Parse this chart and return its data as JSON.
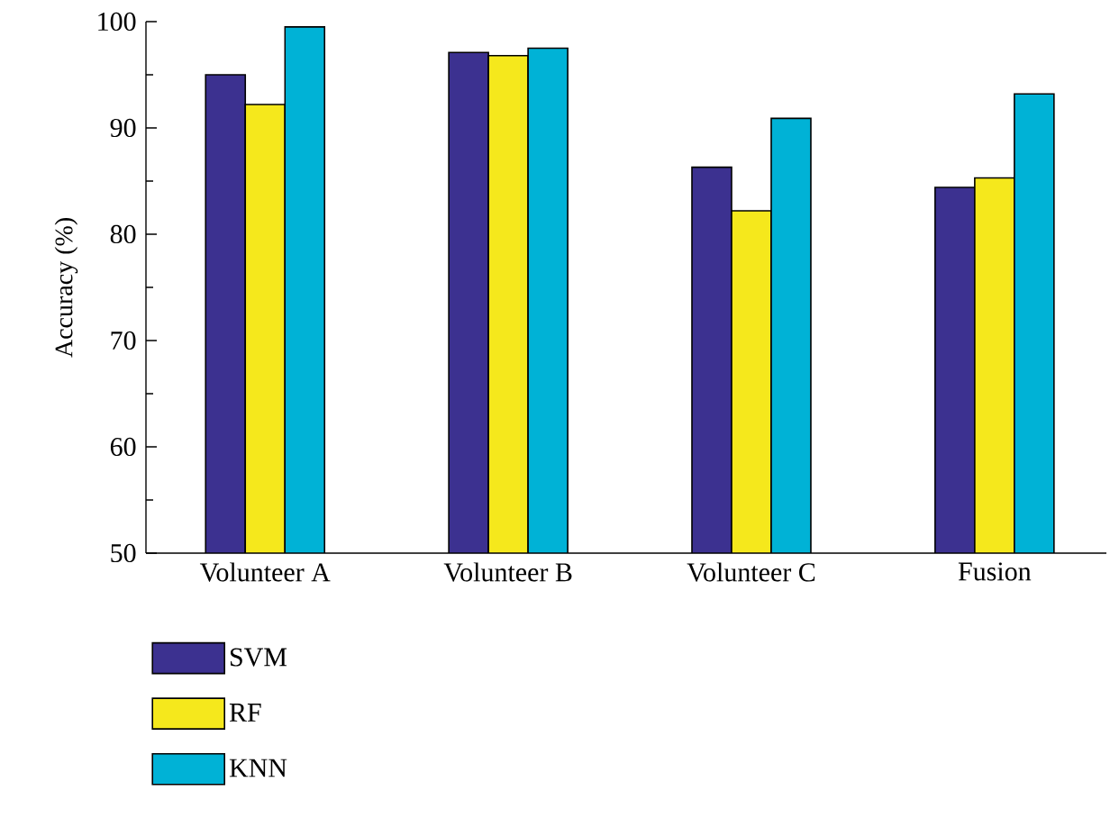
{
  "chart_data": {
    "type": "bar",
    "ylabel": "Accuracy (%)",
    "categories": [
      "Volunteer A",
      "Volunteer B",
      "Volunteer C",
      "Fusion"
    ],
    "series": [
      {
        "name": "SVM",
        "color": "#3c3190",
        "values": [
          95.0,
          97.1,
          86.3,
          84.4
        ]
      },
      {
        "name": "RF",
        "color": "#f5e81c",
        "values": [
          92.2,
          96.8,
          82.2,
          85.3
        ]
      },
      {
        "name": "KNN",
        "color": "#00b2d6",
        "values": [
          99.5,
          97.5,
          90.9,
          93.2
        ]
      }
    ],
    "ylim": [
      50,
      100
    ],
    "yticks": [
      50,
      60,
      70,
      80,
      90,
      100
    ],
    "legend": "bottom left"
  }
}
